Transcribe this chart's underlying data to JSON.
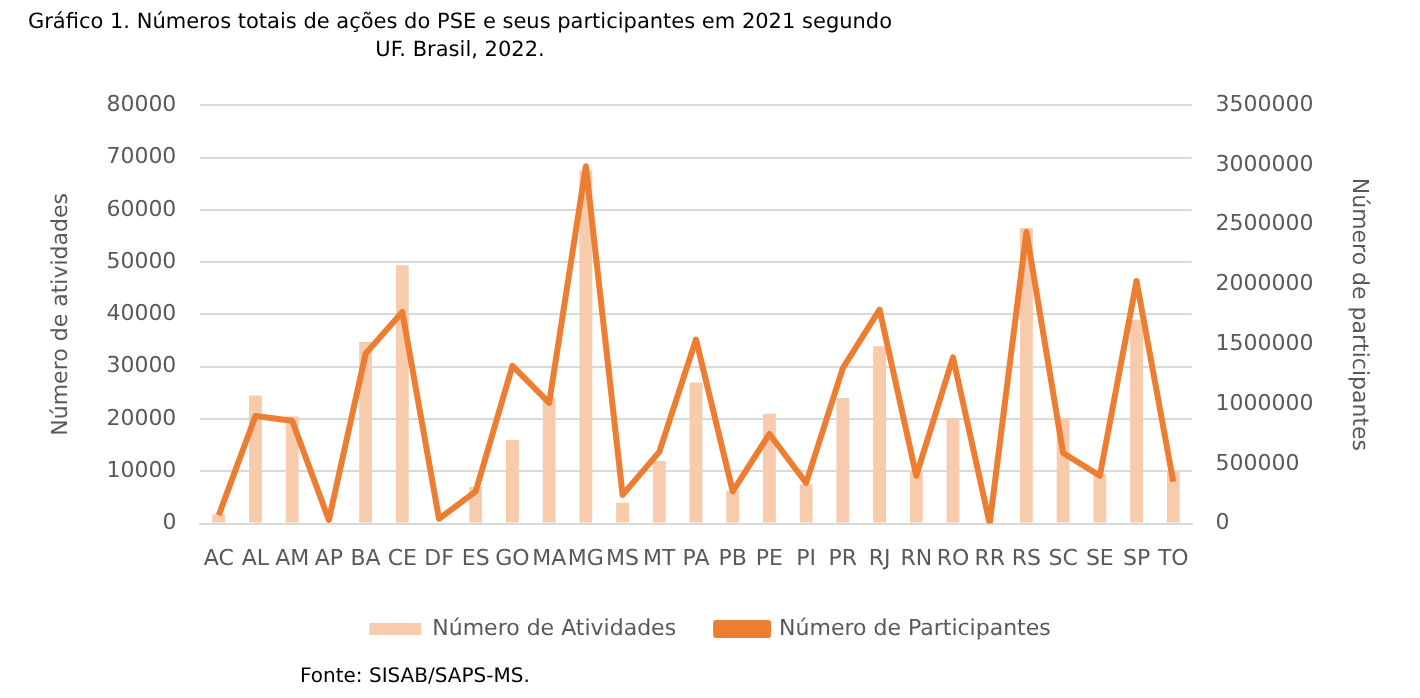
{
  "chart_data": {
    "type": "bar",
    "title": "Gráfico 1. Números totais de ações do PSE e seus participantes em 2021 segundo UF. Brasil, 2022.",
    "categories": [
      "AC",
      "AL",
      "AM",
      "AP",
      "BA",
      "CE",
      "DF",
      "ES",
      "GO",
      "MA",
      "MG",
      "MS",
      "MT",
      "PA",
      "PB",
      "PE",
      "PI",
      "PR",
      "RJ",
      "RN",
      "RO",
      "RR",
      "RS",
      "SC",
      "SE",
      "SP",
      "TO"
    ],
    "series": [
      {
        "name": "Número de Atividades",
        "color": "#f8cbad",
        "values": [
          1800,
          24500,
          20500,
          null,
          34700,
          49400,
          null,
          7000,
          16000,
          24000,
          67500,
          4000,
          12000,
          27000,
          6300,
          21000,
          7500,
          24000,
          33900,
          10000,
          20200,
          200,
          56500,
          20200,
          9500,
          39000,
          10000
        ]
      },
      {
        "name": "Número de Participantes",
        "type": "line",
        "axis": "y2",
        "color": "#ed7d31",
        "values": [
          70000,
          900000,
          860000,
          30000,
          1420000,
          1770000,
          40000,
          270000,
          1320000,
          1010000,
          2990000,
          240000,
          600000,
          1540000,
          270000,
          750000,
          340000,
          1300000,
          1790000,
          400000,
          1390000,
          0,
          2440000,
          590000,
          400000,
          2030000,
          350000
        ]
      }
    ],
    "ylabel": "Número de atividades",
    "y2label": "Número de participantes",
    "ylim": [
      0,
      80000
    ],
    "yticks": [
      0,
      10000,
      20000,
      30000,
      40000,
      50000,
      60000,
      70000,
      80000
    ],
    "y2lim": [
      0,
      3500000
    ],
    "y2ticks": [
      0,
      500000,
      1000000,
      1500000,
      2000000,
      2500000,
      3000000,
      3500000
    ],
    "grid": "y",
    "legend": "bottom",
    "marker": "none",
    "annotations": [
      "Fonte: SISAB/SAPS-MS."
    ]
  }
}
